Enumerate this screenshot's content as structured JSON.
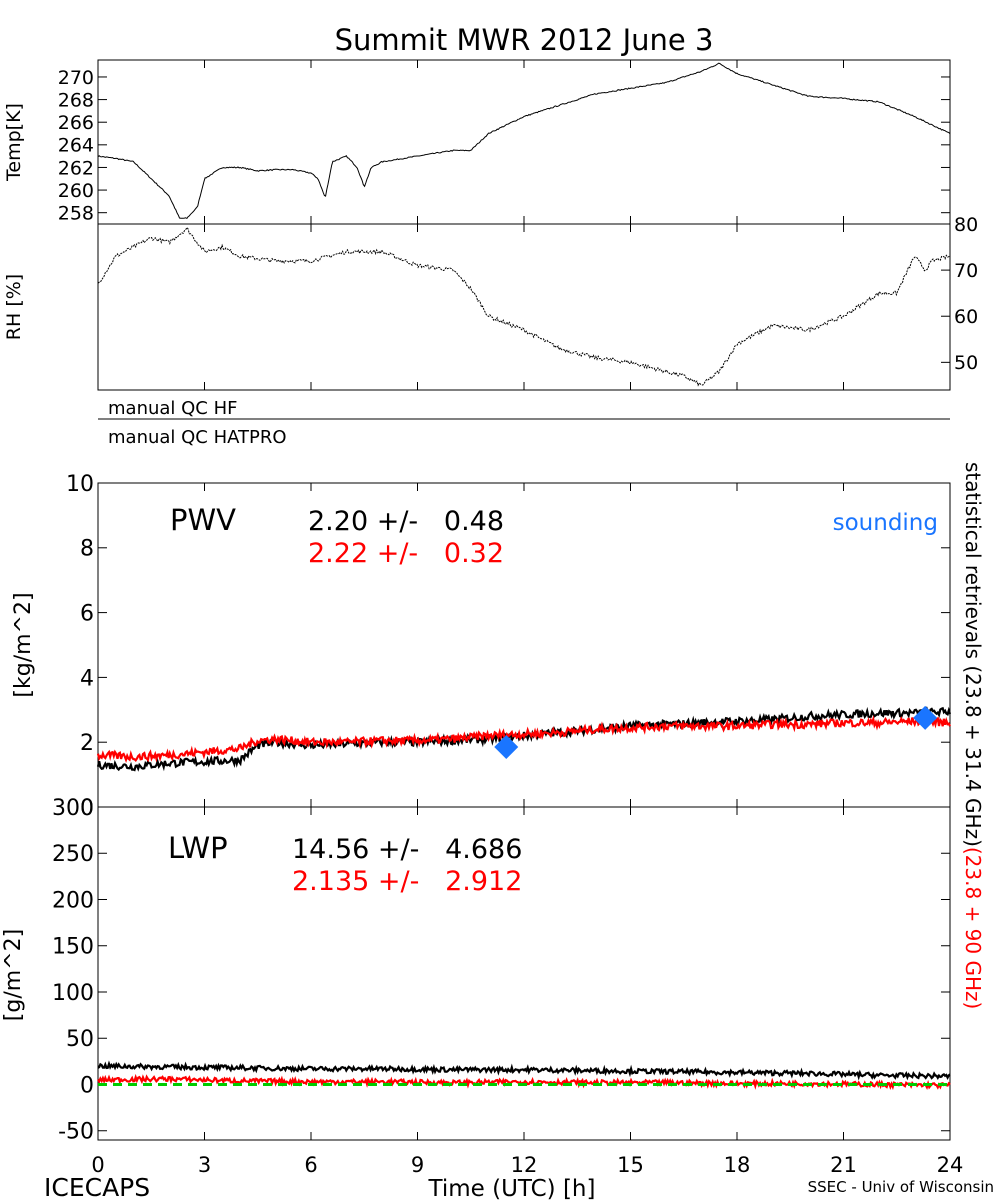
{
  "title": "Summit MWR 2012 June  3",
  "footer": {
    "left": "ICECAPS",
    "center": "Time (UTC) [h]",
    "right": "SSEC - Univ of Wisconsin"
  },
  "qc": {
    "hf": "manual QC HF",
    "hatpro": "manual QC HATPRO"
  },
  "side_label": {
    "black": "statistical retrievals (23.8 + 31.4 GHz)",
    "red": "(23.8 + 90 GHz)"
  },
  "colors": {
    "black": "#000000",
    "red": "#ff0000",
    "blue": "#1a75ff",
    "green": "#00cc00"
  },
  "chart_data": [
    {
      "id": "temp",
      "type": "line",
      "ylabel": "Temp[K]",
      "xlim": [
        0,
        24
      ],
      "ylim": [
        257,
        271.5
      ],
      "yticks": [
        258,
        260,
        262,
        264,
        266,
        268,
        270
      ],
      "series": [
        {
          "color": "black",
          "x": [
            0,
            0.5,
            1,
            1.5,
            2,
            2.3,
            2.5,
            2.8,
            3,
            3.5,
            4,
            4.5,
            5,
            5.5,
            6,
            6.2,
            6.4,
            6.6,
            7,
            7.3,
            7.5,
            7.7,
            8,
            9,
            10,
            10.5,
            11,
            12,
            13,
            14,
            15,
            16,
            17,
            17.5,
            18,
            19,
            20,
            21,
            22,
            23,
            24
          ],
          "y": [
            263,
            262.8,
            262.5,
            261,
            259.5,
            257.5,
            257.5,
            258.5,
            261,
            262,
            262,
            261.7,
            261.8,
            261.8,
            261.5,
            261,
            259.3,
            262.5,
            263,
            262,
            260.3,
            262,
            262.5,
            263,
            263.5,
            263.5,
            265,
            266.5,
            267.5,
            268.5,
            269,
            269.5,
            270.5,
            271.2,
            270.3,
            269.3,
            268.3,
            268.1,
            267.8,
            266.5,
            265
          ]
        }
      ]
    },
    {
      "id": "rh",
      "type": "line",
      "ylabel": "RH [%]",
      "xlim": [
        0,
        24
      ],
      "ylim": [
        44,
        80
      ],
      "yticks": [
        50,
        60,
        70,
        80
      ],
      "series": [
        {
          "color": "black",
          "x": [
            0,
            0.5,
            1,
            1.5,
            2,
            2.5,
            3,
            3.5,
            4,
            5,
            6,
            6.5,
            7,
            8,
            9,
            10,
            10.5,
            11,
            12,
            13,
            14,
            15,
            16,
            16.5,
            17,
            17.5,
            18,
            19,
            20,
            21,
            22,
            22.5,
            23,
            23.3,
            23.5,
            24
          ],
          "y": [
            67,
            73,
            75,
            77,
            76,
            79,
            74,
            75,
            73,
            72,
            72,
            73,
            74,
            74,
            71,
            70,
            66,
            60,
            57,
            53,
            51,
            50,
            48,
            47,
            45,
            48,
            54,
            58,
            57,
            60,
            65,
            65,
            73,
            70,
            72,
            73
          ]
        }
      ]
    },
    {
      "id": "pwv",
      "type": "line",
      "ylabel": "[kg/m^2]",
      "label": "PWV",
      "xlim": [
        0,
        24
      ],
      "ylim": [
        0,
        10
      ],
      "yticks": [
        0,
        2,
        4,
        6,
        8,
        10
      ],
      "stats": [
        {
          "color": "black",
          "text": "2.20 +/-   0.48"
        },
        {
          "color": "red",
          "text": "2.22 +/-   0.32"
        }
      ],
      "legend": {
        "text": "sounding",
        "color": "blue"
      },
      "series": [
        {
          "color": "black",
          "x": [
            0,
            1,
            2,
            3,
            4,
            4.5,
            5,
            6,
            7,
            8,
            9,
            10,
            11,
            12,
            13,
            14,
            15,
            16,
            17,
            18,
            19,
            20,
            21,
            22,
            23,
            24
          ],
          "y": [
            1.3,
            1.25,
            1.35,
            1.4,
            1.45,
            1.9,
            2.0,
            1.9,
            1.95,
            2.0,
            2.0,
            2.05,
            2.1,
            2.2,
            2.3,
            2.4,
            2.5,
            2.55,
            2.6,
            2.65,
            2.7,
            2.8,
            2.85,
            2.9,
            2.9,
            2.95
          ]
        },
        {
          "color": "red",
          "x": [
            0,
            1,
            2,
            3,
            4,
            4.5,
            5,
            6,
            7,
            8,
            9,
            10,
            11,
            12,
            13,
            14,
            15,
            16,
            17,
            18,
            19,
            20,
            21,
            22,
            23,
            24
          ],
          "y": [
            1.6,
            1.55,
            1.6,
            1.7,
            1.8,
            2.05,
            2.1,
            2.0,
            2.0,
            2.05,
            2.05,
            2.1,
            2.2,
            2.25,
            2.3,
            2.4,
            2.45,
            2.5,
            2.5,
            2.5,
            2.55,
            2.55,
            2.6,
            2.6,
            2.65,
            2.6
          ]
        },
        {
          "color": "blue",
          "marker": "diamond",
          "x": [
            11.5,
            23.3
          ],
          "y": [
            1.85,
            2.75
          ]
        }
      ]
    },
    {
      "id": "lwp",
      "type": "line",
      "ylabel": "[g/m^2]",
      "label": "LWP",
      "xlabel": "Time (UTC) [h]",
      "xlim": [
        0,
        24
      ],
      "ylim": [
        -60,
        300
      ],
      "xticks": [
        0,
        3,
        6,
        9,
        12,
        15,
        18,
        21,
        24
      ],
      "yticks": [
        -50,
        0,
        50,
        100,
        150,
        200,
        250,
        300
      ],
      "stats": [
        {
          "color": "black",
          "text": "14.56 +/-   4.686"
        },
        {
          "color": "red",
          "text": "2.135 +/-   2.912"
        }
      ],
      "series": [
        {
          "color": "black",
          "x": [
            0,
            2,
            4,
            6,
            8,
            10,
            12,
            14,
            16,
            18,
            20,
            22,
            24
          ],
          "y": [
            20,
            19,
            18,
            17,
            17,
            16,
            16,
            15,
            14,
            13,
            12,
            10,
            9
          ]
        },
        {
          "color": "red",
          "x": [
            0,
            2,
            4,
            6,
            8,
            10,
            12,
            14,
            16,
            18,
            20,
            22,
            24
          ],
          "y": [
            5,
            6,
            4,
            3,
            3,
            2,
            3,
            2,
            2,
            1,
            1,
            0,
            -1
          ]
        },
        {
          "color": "green",
          "dashed": true,
          "x": [
            0,
            24
          ],
          "y": [
            0,
            0
          ]
        }
      ]
    }
  ]
}
